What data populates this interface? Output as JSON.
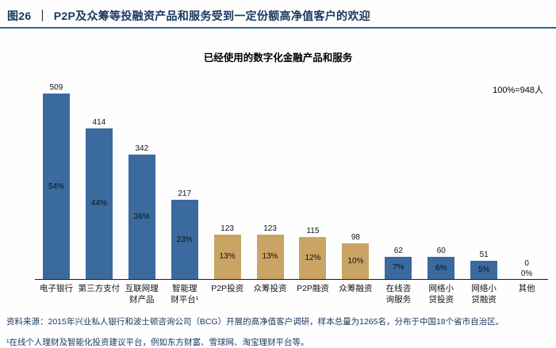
{
  "header": {
    "figure_label": "图26",
    "separator": "｜",
    "title": "P2P及众筹等投融资产品和服务受到一定份额高净值客户的欢迎"
  },
  "chart": {
    "title": "已经使用的数字化金融产品和服务",
    "sample_note": "100%=948人"
  },
  "chart_data": {
    "type": "bar",
    "title": "已经使用的数字化金融产品和服务",
    "categories": [
      "电子银行",
      "第三方支付",
      "互联网理\n财产品",
      "智能理\n财平台¹",
      "P2P投资",
      "众筹投资",
      "P2P融资",
      "众筹融资",
      "在线咨\n询服务",
      "网络小\n贷投资",
      "网络小\n贷融资",
      "其他"
    ],
    "values": [
      509,
      414,
      342,
      217,
      123,
      123,
      115,
      98,
      62,
      60,
      51,
      0
    ],
    "percent_labels": [
      "54%",
      "44%",
      "36%",
      "23%",
      "13%",
      "13%",
      "12%",
      "10%",
      "7%",
      "6%",
      "5%",
      "0%"
    ],
    "bar_color_keys": [
      "blue",
      "blue",
      "blue",
      "blue",
      "tan",
      "tan",
      "tan",
      "tan",
      "blue",
      "blue",
      "blue",
      "blue"
    ],
    "colors": {
      "blue": "#3a6a9e",
      "tan": "#c9a464"
    },
    "xlabel": "",
    "ylabel": "",
    "ylim": [
      0,
      509
    ],
    "grid": false,
    "legend": "none",
    "total_sample": "100%=948人"
  },
  "footer": {
    "source": "资料来源：2015年兴业私人银行和波士顿咨询公司（BCG）开展的高净值客户调研，样本总量为1265名，分布于中国18个省市自治区。",
    "footnote": "¹在线个人理财及智能化投资建议平台，例如东方财富、雪球网、淘宝理财平台等。"
  }
}
